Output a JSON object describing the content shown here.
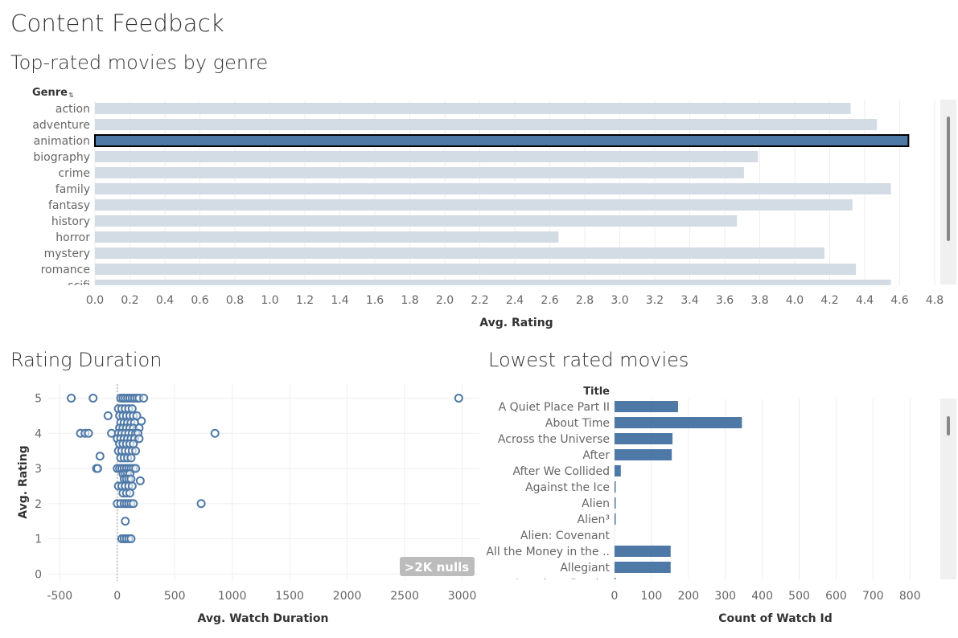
{
  "dashboard": {
    "title": "Content Feedback"
  },
  "genre_panel": {
    "title": "Top-rated movies by genre",
    "column_header": "Genre",
    "x_axis_title": "Avg. Rating"
  },
  "scatter_panel": {
    "title": "Rating Duration",
    "x_axis_title": "Avg. Watch Duration",
    "y_axis_title": "Avg. Rating",
    "nulls_badge": ">2K nulls"
  },
  "lowest_panel": {
    "title": "Lowest rated movies",
    "column_header": "Title",
    "x_axis_title": "Count of Watch Id"
  },
  "colors": {
    "highlight": "#4e79a7",
    "muted": "#d3dbe4",
    "axis_text": "#666666",
    "scrollbar_track": "#f0f0f0",
    "badge": "#bcbcbc"
  },
  "chart_data": [
    {
      "type": "bar",
      "orientation": "horizontal",
      "categories": [
        "action",
        "adventure",
        "animation",
        "biography",
        "crime",
        "family",
        "fantasy",
        "history",
        "horror",
        "mystery",
        "romance",
        "scifi"
      ],
      "values": [
        4.32,
        4.47,
        4.65,
        3.79,
        3.71,
        4.55,
        4.33,
        3.67,
        2.65,
        4.17,
        4.35,
        4.55
      ],
      "selected": "animation",
      "xlabel": "Avg. Rating",
      "xlim": [
        0,
        4.8
      ],
      "xticks": [
        0.0,
        0.2,
        0.4,
        0.6,
        0.8,
        1.0,
        1.2,
        1.4,
        1.6,
        1.8,
        2.0,
        2.2,
        2.4,
        2.6,
        2.8,
        3.0,
        3.2,
        3.4,
        3.6,
        3.8,
        4.0,
        4.2,
        4.4,
        4.6,
        4.8
      ],
      "grid": true
    },
    {
      "type": "scatter",
      "marker": "hollow-circle",
      "xlabel": "Avg. Watch Duration",
      "ylabel": "Avg. Rating",
      "xlim": [
        -600,
        3150
      ],
      "ylim": [
        -0.2,
        5.4
      ],
      "xticks": [
        -500,
        0,
        500,
        1000,
        1500,
        2000,
        2500,
        3000
      ],
      "yticks": [
        0,
        1,
        2,
        3,
        4,
        5
      ],
      "grid": true,
      "points": [
        [
          -400,
          5
        ],
        [
          -210,
          5
        ],
        [
          2970,
          5
        ],
        [
          -80,
          4.5
        ],
        [
          -320,
          4
        ],
        [
          -280,
          4
        ],
        [
          -250,
          4
        ],
        [
          -50,
          4
        ],
        [
          850,
          4
        ],
        [
          -150,
          3.35
        ],
        [
          -180,
          3
        ],
        [
          -170,
          3
        ],
        [
          730,
          2
        ],
        [
          200,
          2.65
        ],
        [
          210,
          4.35
        ],
        [
          30,
          5
        ],
        [
          50,
          5
        ],
        [
          70,
          5
        ],
        [
          90,
          5
        ],
        [
          110,
          5
        ],
        [
          130,
          5
        ],
        [
          150,
          5
        ],
        [
          170,
          5
        ],
        [
          190,
          5
        ],
        [
          230,
          5
        ],
        [
          10,
          4.7
        ],
        [
          40,
          4.7
        ],
        [
          70,
          4.7
        ],
        [
          100,
          4.7
        ],
        [
          130,
          4.7
        ],
        [
          20,
          4.5
        ],
        [
          50,
          4.5
        ],
        [
          80,
          4.5
        ],
        [
          110,
          4.5
        ],
        [
          140,
          4.5
        ],
        [
          170,
          4.5
        ],
        [
          30,
          4.3
        ],
        [
          60,
          4.3
        ],
        [
          90,
          4.3
        ],
        [
          120,
          4.3
        ],
        [
          150,
          4.3
        ],
        [
          20,
          4.15
        ],
        [
          50,
          4.15
        ],
        [
          80,
          4.15
        ],
        [
          110,
          4.15
        ],
        [
          140,
          4.15
        ],
        [
          190,
          4.15
        ],
        [
          10,
          4
        ],
        [
          40,
          4
        ],
        [
          70,
          4
        ],
        [
          100,
          4
        ],
        [
          130,
          4
        ],
        [
          160,
          4
        ],
        [
          180,
          4
        ],
        [
          0,
          3.85
        ],
        [
          30,
          3.85
        ],
        [
          60,
          3.85
        ],
        [
          90,
          3.85
        ],
        [
          120,
          3.85
        ],
        [
          150,
          3.85
        ],
        [
          190,
          3.85
        ],
        [
          20,
          3.7
        ],
        [
          50,
          3.7
        ],
        [
          80,
          3.7
        ],
        [
          110,
          3.7
        ],
        [
          140,
          3.7
        ],
        [
          10,
          3.5
        ],
        [
          40,
          3.5
        ],
        [
          70,
          3.5
        ],
        [
          100,
          3.5
        ],
        [
          130,
          3.5
        ],
        [
          160,
          3.5
        ],
        [
          30,
          3.3
        ],
        [
          60,
          3.3
        ],
        [
          90,
          3.3
        ],
        [
          120,
          3.3
        ],
        [
          0,
          3
        ],
        [
          20,
          3
        ],
        [
          40,
          3
        ],
        [
          60,
          3
        ],
        [
          80,
          3
        ],
        [
          100,
          3
        ],
        [
          120,
          3
        ],
        [
          140,
          3
        ],
        [
          160,
          3
        ],
        [
          50,
          2.85
        ],
        [
          70,
          2.85
        ],
        [
          90,
          2.85
        ],
        [
          110,
          2.85
        ],
        [
          60,
          2.7
        ],
        [
          80,
          2.7
        ],
        [
          100,
          2.7
        ],
        [
          120,
          2.7
        ],
        [
          10,
          2.5
        ],
        [
          40,
          2.5
        ],
        [
          70,
          2.5
        ],
        [
          100,
          2.5
        ],
        [
          130,
          2.5
        ],
        [
          50,
          2.3
        ],
        [
          80,
          2.3
        ],
        [
          110,
          2.3
        ],
        [
          0,
          2
        ],
        [
          30,
          2
        ],
        [
          60,
          2
        ],
        [
          80,
          2
        ],
        [
          100,
          2
        ],
        [
          120,
          2
        ],
        [
          140,
          2
        ],
        [
          70,
          1.5
        ],
        [
          40,
          1
        ],
        [
          60,
          1
        ],
        [
          80,
          1
        ],
        [
          100,
          1
        ],
        [
          120,
          1
        ]
      ]
    },
    {
      "type": "bar",
      "orientation": "horizontal",
      "categories": [
        "A Quiet Place Part II",
        "About Time",
        "Across the Universe",
        "After",
        "After We Collided",
        "Against the Ice",
        "Alien",
        "Alien³",
        "Alien: Covenant",
        "All the Money in the ..",
        "Allegiant",
        "American Psycho"
      ],
      "values": [
        172,
        345,
        157,
        155,
        17,
        3,
        3,
        3,
        0,
        152,
        152,
        2
      ],
      "xlabel": "Count of Watch Id",
      "xlim": [
        0,
        880
      ],
      "xticks": [
        0,
        100,
        200,
        300,
        400,
        500,
        600,
        700,
        800
      ],
      "grid": true
    }
  ]
}
